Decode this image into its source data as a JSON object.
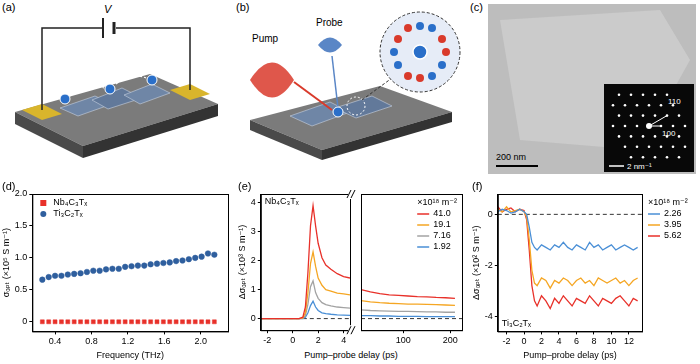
{
  "panels": {
    "a": {
      "label": "(a)",
      "voltage": "V"
    },
    "b": {
      "label": "(b)",
      "probe": "Probe",
      "pump": "Pump"
    },
    "c": {
      "label": "(c)",
      "scale_bar": "200 nm",
      "inset_scale_bar": "2 nm⁻¹",
      "inset_labels": [
        "100",
        "110"
      ]
    }
  },
  "chart_data": [
    {
      "type": "scatter",
      "title": "(d)",
      "xlabel": "Frequency (THz)",
      "ylabel": "σₒₚₜ (×10⁵ S m⁻¹)",
      "xlim": [
        0.15,
        2.3
      ],
      "xticks": [
        0.4,
        0.8,
        1.2,
        1.6,
        {
          "value": 2,
          "label": "2.0"
        }
      ],
      "ylim": [
        -0.15,
        2
      ],
      "yticks": [
        0,
        0.5,
        {
          "value": 1,
          "label": "1.0"
        },
        1.5,
        {
          "value": 2,
          "label": "2.0"
        }
      ],
      "grid": false,
      "legend": "upper left",
      "x": [
        0.26,
        0.33,
        0.4,
        0.47,
        0.54,
        0.61,
        0.68,
        0.75,
        0.82,
        0.89,
        0.96,
        1.03,
        1.1,
        1.17,
        1.24,
        1.31,
        1.38,
        1.45,
        1.52,
        1.59,
        1.66,
        1.73,
        1.8,
        1.87,
        1.94,
        2.01,
        2.08,
        2.15
      ],
      "series": [
        {
          "name": "Nb₄C₃Tₓ",
          "color": "#e8312a",
          "marker": "square",
          "values": [
            0,
            0,
            0,
            0,
            0,
            0,
            0,
            0,
            0,
            0,
            0,
            0,
            0,
            0,
            0,
            0,
            0,
            0,
            0,
            0,
            0,
            0,
            0,
            0,
            0,
            0,
            0,
            0
          ]
        },
        {
          "name": "Ti₃C₂Tₓ",
          "color": "#2f5f9e",
          "marker": "circle",
          "values": [
            0.66,
            0.7,
            0.72,
            0.72,
            0.74,
            0.75,
            0.76,
            0.78,
            0.8,
            0.8,
            0.82,
            0.83,
            0.83,
            0.86,
            0.87,
            0.88,
            0.88,
            0.9,
            0.91,
            0.92,
            0.93,
            0.95,
            0.96,
            0.98,
            1.0,
            1.02,
            1.07,
            1.05
          ]
        }
      ]
    },
    {
      "type": "line",
      "title": "(e)",
      "annotations": [
        "Nb₄C₃Tₓ"
      ],
      "xlabel": "Pump–probe delay (ps)",
      "ylabel": "Δσₒₚₜ (×10³ S m⁻¹)",
      "xlim": [
        -2.5,
        4.5
      ],
      "xticks": [
        -2,
        0,
        2,
        4
      ],
      "ylim": [
        -0.4,
        4.3
      ],
      "yticks": [
        0,
        1,
        2,
        3,
        4
      ],
      "grid": false,
      "x": [
        -2.5,
        -2,
        -1.5,
        -1,
        -0.5,
        0,
        0.5,
        0.8,
        1.0,
        1.2,
        1.4,
        1.6,
        1.8,
        2.0,
        2.3,
        2.6,
        3.0,
        3.5,
        4.0,
        4.5
      ],
      "series": [
        {
          "color": "#e8312a",
          "values": [
            0,
            0,
            0,
            0,
            0,
            0,
            0,
            0.05,
            0.4,
            1.6,
            3.2,
            3.9,
            3.2,
            2.6,
            2.1,
            1.85,
            1.7,
            1.55,
            1.45,
            1.4
          ]
        },
        {
          "color": "#f5a623",
          "values": [
            0,
            0,
            0,
            0,
            0,
            0,
            0,
            0.02,
            0.2,
            0.9,
            1.9,
            2.3,
            1.8,
            1.4,
            1.15,
            1.0,
            0.95,
            0.88,
            0.85,
            0.82
          ]
        },
        {
          "color": "#a3a3a3",
          "values": [
            0,
            0,
            0,
            0,
            0,
            0,
            0,
            0.01,
            0.1,
            0.5,
            1.1,
            1.3,
            0.9,
            0.7,
            0.55,
            0.48,
            0.44,
            0.4,
            0.38,
            0.36
          ]
        },
        {
          "color": "#4a8fd6",
          "values": [
            0,
            0,
            0,
            0,
            0,
            0,
            0,
            0,
            0.05,
            0.2,
            0.45,
            0.6,
            0.4,
            0.28,
            0.2,
            0.17,
            0.15,
            0.13,
            0.12,
            0.11
          ]
        },
        {
          "color": "#000000",
          "line_style": "dashed",
          "x": [
            -2.5,
            4.5
          ],
          "values": [
            0,
            0
          ]
        }
      ]
    },
    {
      "type": "line",
      "xlim": [
        10,
        225
      ],
      "xticks": [
        100,
        200
      ],
      "ylim": [
        -0.4,
        4.3
      ],
      "grid": false,
      "tick_labels": "x",
      "legend": "upper right",
      "legend_title": "×10¹⁸ m⁻²",
      "x": [
        10,
        30,
        50,
        70,
        90,
        110,
        130,
        150,
        170,
        190,
        210
      ],
      "series": [
        {
          "name": "41.0",
          "color": "#e8312a",
          "values": [
            1.0,
            0.92,
            0.86,
            0.82,
            0.8,
            0.78,
            0.76,
            0.75,
            0.73,
            0.72,
            0.7
          ]
        },
        {
          "name": "19.1",
          "color": "#f5a623",
          "values": [
            0.62,
            0.58,
            0.55,
            0.53,
            0.52,
            0.5,
            0.5,
            0.49,
            0.48,
            0.47,
            0.46
          ]
        },
        {
          "name": "7.16",
          "color": "#a3a3a3",
          "values": [
            0.3,
            0.28,
            0.27,
            0.26,
            0.25,
            0.25,
            0.24,
            0.23,
            0.23,
            0.22,
            0.22
          ]
        },
        {
          "name": "1.92",
          "color": "#4a8fd6",
          "values": [
            0.1,
            0.1,
            0.09,
            0.09,
            0.08,
            0.08,
            0.08,
            0.07,
            0.07,
            0.07,
            0.07
          ]
        },
        {
          "color": "#000000",
          "line_style": "dashed",
          "x": [
            10,
            225
          ],
          "values": [
            0,
            0
          ]
        }
      ]
    },
    {
      "type": "line",
      "title": "(f)",
      "annotations": [
        "Ti₃C₂Tₓ"
      ],
      "xlabel": "Pump–probe delay (ps)",
      "ylabel": "Δσₒₚₜ (×10² S m⁻¹)",
      "xlim": [
        -3,
        13.5
      ],
      "xticks": [
        -2,
        0,
        2,
        4,
        6,
        8,
        10,
        12
      ],
      "ylim": [
        -4.6,
        0.8
      ],
      "yticks": [
        -4,
        -2,
        0
      ],
      "grid": false,
      "legend": "right",
      "legend_title": "×10¹⁸ m⁻²",
      "x": [
        -3,
        -2.5,
        -2,
        -1.5,
        -1,
        -0.5,
        0,
        0.3,
        0.6,
        0.9,
        1.2,
        1.5,
        2,
        2.5,
        3,
        3.5,
        4,
        4.5,
        5,
        5.5,
        6,
        6.5,
        7,
        7.5,
        8,
        8.5,
        9,
        9.5,
        10,
        10.5,
        11,
        11.5,
        12,
        12.5,
        13
      ],
      "series": [
        {
          "name": "2.26",
          "color": "#4a8fd6",
          "values": [
            0.1,
            0.2,
            0.15,
            0.05,
            0.1,
            0.2,
            0.1,
            0,
            -0.5,
            -1.1,
            -1.3,
            -1.4,
            -1.2,
            -1.3,
            -1.4,
            -1.2,
            -1.3,
            -1.1,
            -1.3,
            -1.4,
            -1.2,
            -1.3,
            -1.4,
            -1.1,
            -1.3,
            -1.2,
            -1.4,
            -1.3,
            -1.2,
            -1.4,
            -1.3,
            -1.2,
            -1.3,
            -1.4,
            -1.3
          ]
        },
        {
          "name": "3.95",
          "color": "#f5a623",
          "values": [
            0.2,
            0.1,
            0.3,
            0.1,
            0.15,
            0.2,
            0.1,
            -0.1,
            -1.0,
            -2.2,
            -2.7,
            -2.8,
            -2.5,
            -2.6,
            -2.9,
            -2.6,
            -2.7,
            -2.5,
            -2.6,
            -2.8,
            -2.6,
            -2.5,
            -2.7,
            -2.6,
            -2.8,
            -2.5,
            -2.6,
            -2.7,
            -2.6,
            -2.5,
            -2.7,
            -2.6,
            -2.8,
            -2.6,
            -2.5
          ]
        },
        {
          "name": "5.62",
          "color": "#e8312a",
          "values": [
            0.3,
            0.1,
            0.2,
            0.25,
            0.1,
            0.2,
            0.15,
            -0.2,
            -1.4,
            -2.8,
            -3.4,
            -3.6,
            -3.2,
            -3.4,
            -3.7,
            -3.3,
            -3.5,
            -3.2,
            -3.4,
            -3.6,
            -3.3,
            -3.4,
            -3.5,
            -3.2,
            -3.4,
            -3.6,
            -3.3,
            -3.4,
            -3.5,
            -3.3,
            -3.2,
            -3.4,
            -3.6,
            -3.3,
            -3.4
          ]
        },
        {
          "color": "#000000",
          "line_style": "dashed",
          "x": [
            -3,
            13.5
          ],
          "values": [
            0,
            0
          ]
        }
      ]
    }
  ]
}
